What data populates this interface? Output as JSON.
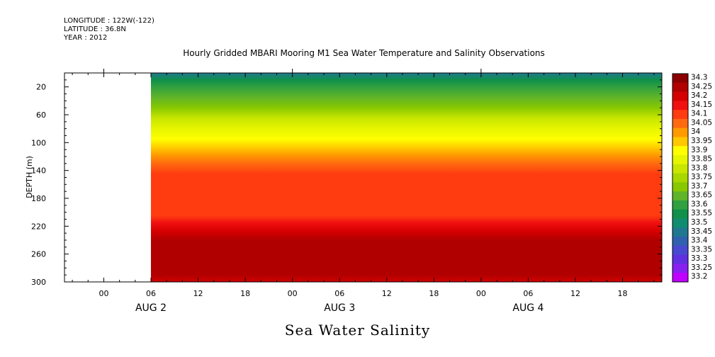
{
  "header": {
    "longitude": "LONGITUDE : 122W(-122)",
    "latitude": "LATITUDE : 36.8N",
    "year": "YEAR : 2012"
  },
  "chart_data": {
    "type": "heatmap",
    "title": "Hourly Gridded MBARI Mooring M1 Sea Water Temperature and Salinity Observations",
    "bottom_title": "Sea Water Salinity",
    "ylabel": "DEPTH (m)",
    "ylim": [
      300,
      0
    ],
    "y_ticks": [
      20,
      60,
      100,
      140,
      180,
      220,
      260,
      300
    ],
    "x_hour_ticks": [
      "00",
      "06",
      "12",
      "18",
      "00",
      "06",
      "12",
      "18",
      "00",
      "06",
      "12",
      "18"
    ],
    "x_day_labels": [
      "AUG  2",
      "AUG  3",
      "AUG  4"
    ],
    "x_range_hours": [
      -5,
      71
    ],
    "data_start_hour": 6,
    "colorbar": {
      "levels": [
        34.3,
        34.25,
        34.2,
        34.15,
        34.1,
        34.05,
        34,
        33.95,
        33.9,
        33.85,
        33.8,
        33.75,
        33.7,
        33.65,
        33.6,
        33.55,
        33.5,
        33.45,
        33.4,
        33.35,
        33.3,
        33.25,
        33.2
      ],
      "colors": [
        "#8b0000",
        "#b00000",
        "#d40000",
        "#f01010",
        "#ff3b10",
        "#ff6a10",
        "#ff9a00",
        "#ffc800",
        "#ffff00",
        "#e6f500",
        "#c8e600",
        "#a8d800",
        "#88c800",
        "#60b428",
        "#30a040",
        "#10904a",
        "#108c70",
        "#207890",
        "#3060b0",
        "#4848d0",
        "#6030e0",
        "#8820f0",
        "#c000ff"
      ]
    },
    "depth_profile": [
      {
        "depth": 0,
        "value": 33.48
      },
      {
        "depth": 10,
        "value": 33.55
      },
      {
        "depth": 20,
        "value": 33.62
      },
      {
        "depth": 35,
        "value": 33.68
      },
      {
        "depth": 50,
        "value": 33.74
      },
      {
        "depth": 65,
        "value": 33.8
      },
      {
        "depth": 80,
        "value": 33.86
      },
      {
        "depth": 95,
        "value": 33.92
      },
      {
        "depth": 108,
        "value": 33.97
      },
      {
        "depth": 118,
        "value": 34.02
      },
      {
        "depth": 130,
        "value": 34.07
      },
      {
        "depth": 145,
        "value": 34.13
      },
      {
        "depth": 205,
        "value": 34.13
      },
      {
        "depth": 215,
        "value": 34.18
      },
      {
        "depth": 228,
        "value": 34.22
      },
      {
        "depth": 240,
        "value": 34.26
      },
      {
        "depth": 290,
        "value": 34.27
      },
      {
        "depth": 300,
        "value": 34.24
      }
    ]
  }
}
